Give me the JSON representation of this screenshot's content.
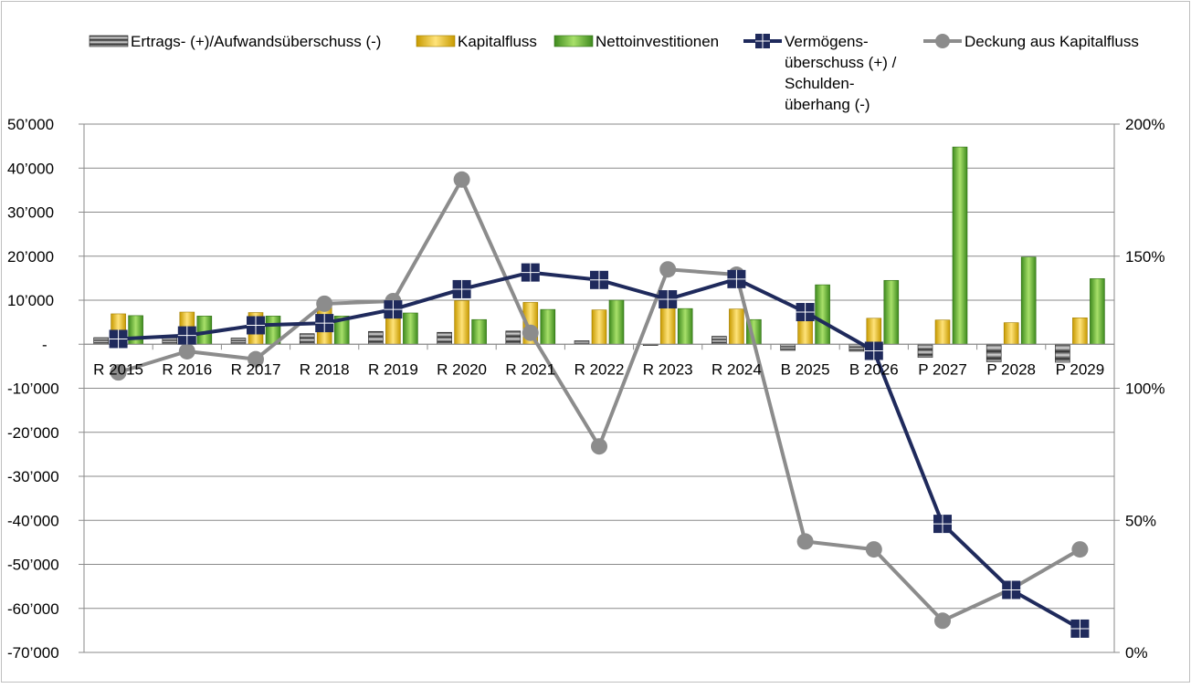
{
  "chart_data": {
    "type": "bar",
    "categories": [
      "R 2015",
      "R 2016",
      "R 2017",
      "R 2018",
      "R 2019",
      "R 2020",
      "R 2021",
      "R 2022",
      "R 2023",
      "R 2024",
      "B 2025",
      "B 2026",
      "P 2027",
      "P 2028",
      "P 2029"
    ],
    "series": [
      {
        "name": "Ertrags- (+)/Aufwandsüberschuss (-)",
        "kind": "bar",
        "axis": "left",
        "color": "#404040",
        "values": [
          1500,
          1500,
          1400,
          2400,
          2900,
          2700,
          3000,
          800,
          -300,
          1800,
          -1400,
          -1600,
          -3000,
          -4000,
          -4100
        ]
      },
      {
        "name": "Kapitalfluss",
        "kind": "bar",
        "axis": "left",
        "color": "#f0c020",
        "values": [
          6900,
          7300,
          7200,
          8400,
          7000,
          9900,
          9500,
          7800,
          10600,
          8000,
          6900,
          5900,
          5500,
          4900,
          6000
        ]
      },
      {
        "name": "Nettoinvestitionen",
        "kind": "bar",
        "axis": "left",
        "color": "#7ac943",
        "values": [
          6500,
          6400,
          6400,
          6400,
          7100,
          5600,
          7900,
          10000,
          8100,
          5600,
          13500,
          14500,
          44800,
          19800,
          14900
        ]
      },
      {
        "name": "Vermögens-überschuss (+) / Schulden-überhang (-)",
        "kind": "line",
        "axis": "left",
        "color": "#1f2a5c",
        "marker": "square",
        "values": [
          1200,
          2000,
          4300,
          4800,
          7900,
          12500,
          16300,
          14600,
          10200,
          14800,
          7300,
          -1500,
          -40800,
          -55800,
          -64600
        ]
      },
      {
        "name": "Deckung aus Kapitalfluss",
        "kind": "line",
        "axis": "right",
        "color": "#8c8c8c",
        "marker": "circle",
        "values": [
          106,
          114,
          111,
          132,
          133,
          179,
          121,
          78,
          145,
          143,
          42,
          39,
          12,
          24,
          39
        ]
      }
    ],
    "legend_labels": [
      [
        "Ertrags- (+)/Aufwandsüberschuss (-)"
      ],
      [
        "Kapitalfluss"
      ],
      [
        "Nettoinvestitionen"
      ],
      [
        "Vermögens-",
        "überschuss (+) /",
        "Schulden-",
        "überhang (-)"
      ],
      [
        "Deckung aus Kapitalfluss"
      ]
    ],
    "y_left": {
      "lim": [
        -70000,
        50000
      ],
      "ticks": [
        50000,
        40000,
        30000,
        20000,
        10000,
        0,
        -10000,
        -20000,
        -30000,
        -40000,
        -50000,
        -60000,
        -70000
      ],
      "tick_labels": [
        "50’000",
        "40’000",
        "30’000",
        "20’000",
        "10’000",
        "-",
        "-10’000",
        "-20’000",
        "-30’000",
        "-40’000",
        "-50’000",
        "-60’000",
        "-70’000"
      ]
    },
    "y_right": {
      "lim": [
        0,
        200
      ],
      "ticks": [
        200,
        150,
        100,
        50,
        0
      ],
      "tick_labels": [
        "200%",
        "150%",
        "100%",
        "50%",
        "0%"
      ]
    },
    "grid": true,
    "legend_position": "top"
  }
}
